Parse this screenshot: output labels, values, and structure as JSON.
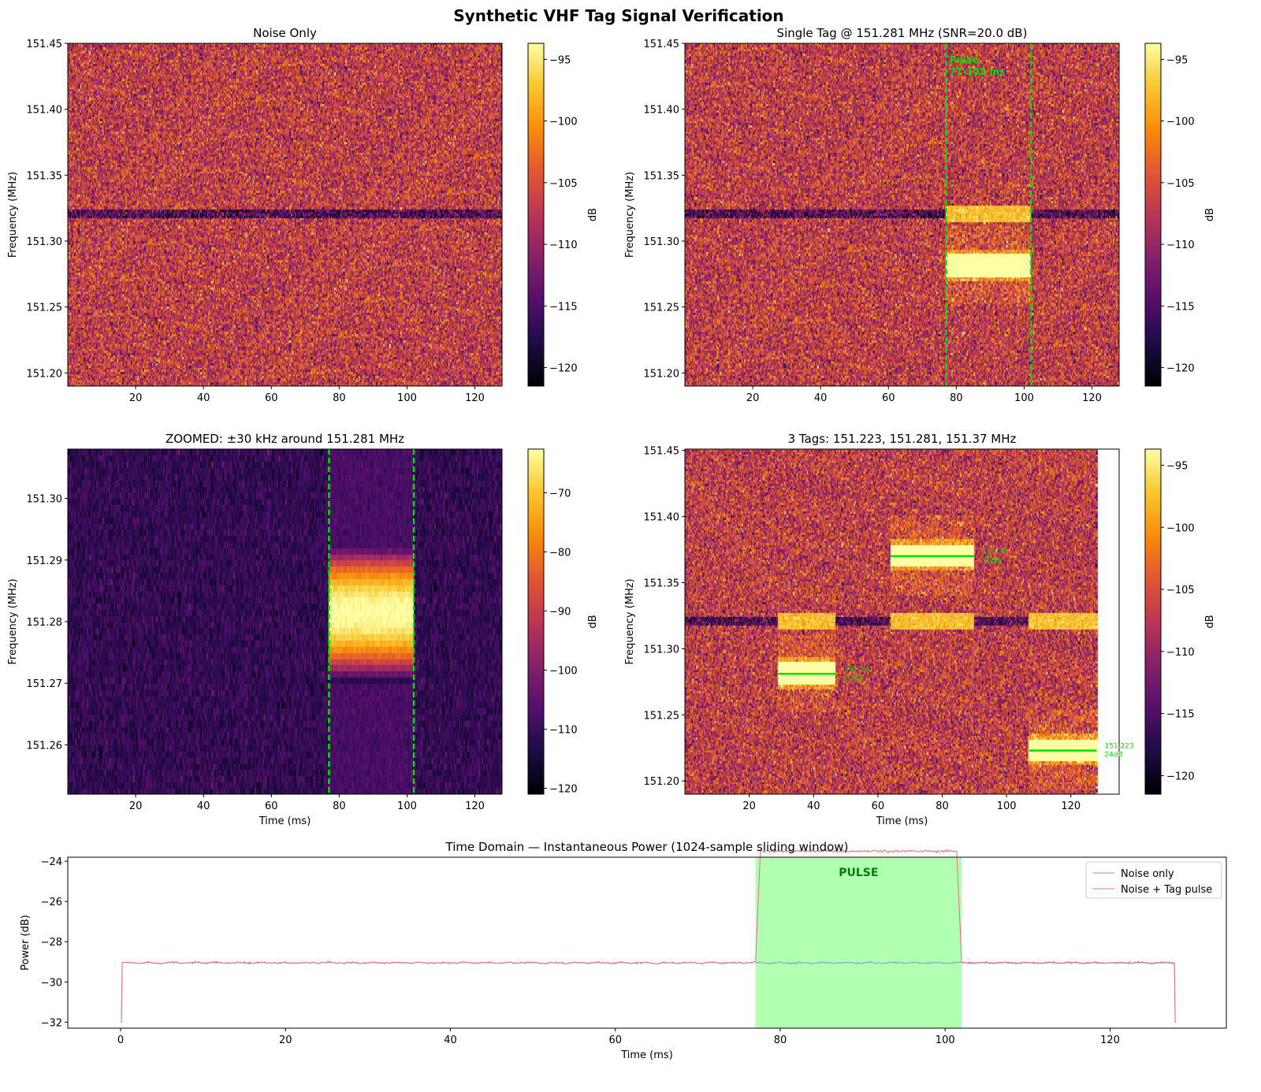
{
  "figure_title": "Synthetic VHF Tag Signal Verification",
  "colors": {
    "pulse_marker": "#00e000",
    "noise_line": "#7f9fcf",
    "tag_line": "#e07080",
    "pulse_fill": "#90ff90",
    "colormap": "inferno"
  },
  "chart_data": [
    {
      "type": "heatmap",
      "title": "Noise Only",
      "xlabel": "",
      "ylabel": "Frequency (MHz)",
      "colorbar_label": "dB",
      "xlim": [
        0,
        128
      ],
      "ylim": [
        151.19,
        151.45
      ],
      "clim": [
        -121.5,
        -93.7
      ],
      "xticks": [
        20,
        40,
        60,
        80,
        100,
        120
      ],
      "yticks": [
        "151.20",
        "151.25",
        "151.30",
        "151.35",
        "151.40",
        "151.45"
      ],
      "cticks": [
        -95,
        -100,
        -105,
        -110,
        -115,
        -120
      ],
      "dark_line_mhz": 151.32,
      "signals": []
    },
    {
      "type": "heatmap",
      "title": "Single Tag @ 151.281 MHz (SNR=20.0 dB)",
      "xlabel": "",
      "ylabel": "Frequency (MHz)",
      "colorbar_label": "dB",
      "xlim": [
        0,
        128
      ],
      "ylim": [
        151.19,
        151.45
      ],
      "clim": [
        -121.5,
        -93.7
      ],
      "xticks": [
        20,
        40,
        60,
        80,
        100,
        120
      ],
      "yticks": [
        "151.20",
        "151.25",
        "151.30",
        "151.35",
        "151.40",
        "151.45"
      ],
      "cticks": [
        -95,
        -100,
        -105,
        -110,
        -115,
        -120
      ],
      "dark_line_mhz": 151.32,
      "signals": [
        {
          "t0": 77,
          "t1": 102,
          "freq": 151.281,
          "image_freq": 151.32
        }
      ],
      "pulse_lines": [
        77,
        102
      ],
      "annotation": [
        "Pulse",
        "77-102 ms"
      ]
    },
    {
      "type": "heatmap",
      "title": "ZOOMED: ±30 kHz around 151.281 MHz",
      "xlabel": "Time (ms)",
      "ylabel": "Frequency (MHz)",
      "colorbar_label": "dB",
      "xlim": [
        0,
        128
      ],
      "ylim": [
        151.252,
        151.308
      ],
      "clim": [
        -121,
        -62.6
      ],
      "xticks": [
        20,
        40,
        60,
        80,
        100,
        120
      ],
      "yticks": [
        "151.26",
        "151.27",
        "151.28",
        "151.29",
        "151.30"
      ],
      "cticks": [
        -70,
        -80,
        -90,
        -100,
        -110,
        -120
      ],
      "signals": [
        {
          "t0": 77,
          "t1": 102,
          "freq": 151.281
        }
      ],
      "pulse_lines": [
        77,
        102
      ]
    },
    {
      "type": "heatmap",
      "title": "3 Tags: 151.223, 151.281, 151.37 MHz",
      "xlabel": "Time (ms)",
      "ylabel": "Frequency (MHz)",
      "colorbar_label": "dB",
      "xlim": [
        0,
        135
      ],
      "ylim": [
        151.19,
        151.451
      ],
      "clim": [
        -121.5,
        -93.7
      ],
      "xticks": [
        20,
        40,
        60,
        80,
        100,
        120
      ],
      "yticks": [
        "151.20",
        "151.25",
        "151.30",
        "151.35",
        "151.40",
        "151.45"
      ],
      "cticks": [
        -95,
        -100,
        -105,
        -110,
        -115,
        -120
      ],
      "dark_line_mhz": 151.32,
      "data_tmax": 128,
      "signals": [
        {
          "t0": 29,
          "t1": 47,
          "freq": 151.281,
          "image_freq": 151.32,
          "label": [
            "151.281",
            "20dB"
          ]
        },
        {
          "t0": 64,
          "t1": 90,
          "freq": 151.37,
          "image_freq": 151.32,
          "label": [
            "151.37",
            "20dB"
          ]
        },
        {
          "t0": 107,
          "t1": 128,
          "freq": 151.223,
          "image_freq": 151.32,
          "label": [
            "151.223",
            "24dB"
          ]
        }
      ]
    },
    {
      "type": "line",
      "title": "Time Domain — Instantaneous Power (1024-sample sliding window)",
      "xlabel": "Time (ms)",
      "ylabel": "Power (dB)",
      "xlim": [
        -6.4,
        134.1
      ],
      "ylim": [
        -32.3,
        -23.8
      ],
      "xticks": [
        0,
        20,
        40,
        60,
        80,
        100,
        120
      ],
      "yticks": [
        -24,
        -26,
        -28,
        -30,
        -32
      ],
      "legend_position": "upper right",
      "shaded_region": {
        "x0": 77,
        "x1": 102,
        "label": "PULSE"
      },
      "series": [
        {
          "name": "Noise only",
          "baseline": -29.05,
          "t0": 0,
          "t1": 128,
          "edge": -32
        },
        {
          "name": "Noise + Tag pulse",
          "baseline": -29.05,
          "pulse_level": -23.5,
          "pulse_t0": 77,
          "pulse_t1": 102,
          "t0": 0,
          "t1": 128,
          "edge": -32
        }
      ]
    }
  ]
}
